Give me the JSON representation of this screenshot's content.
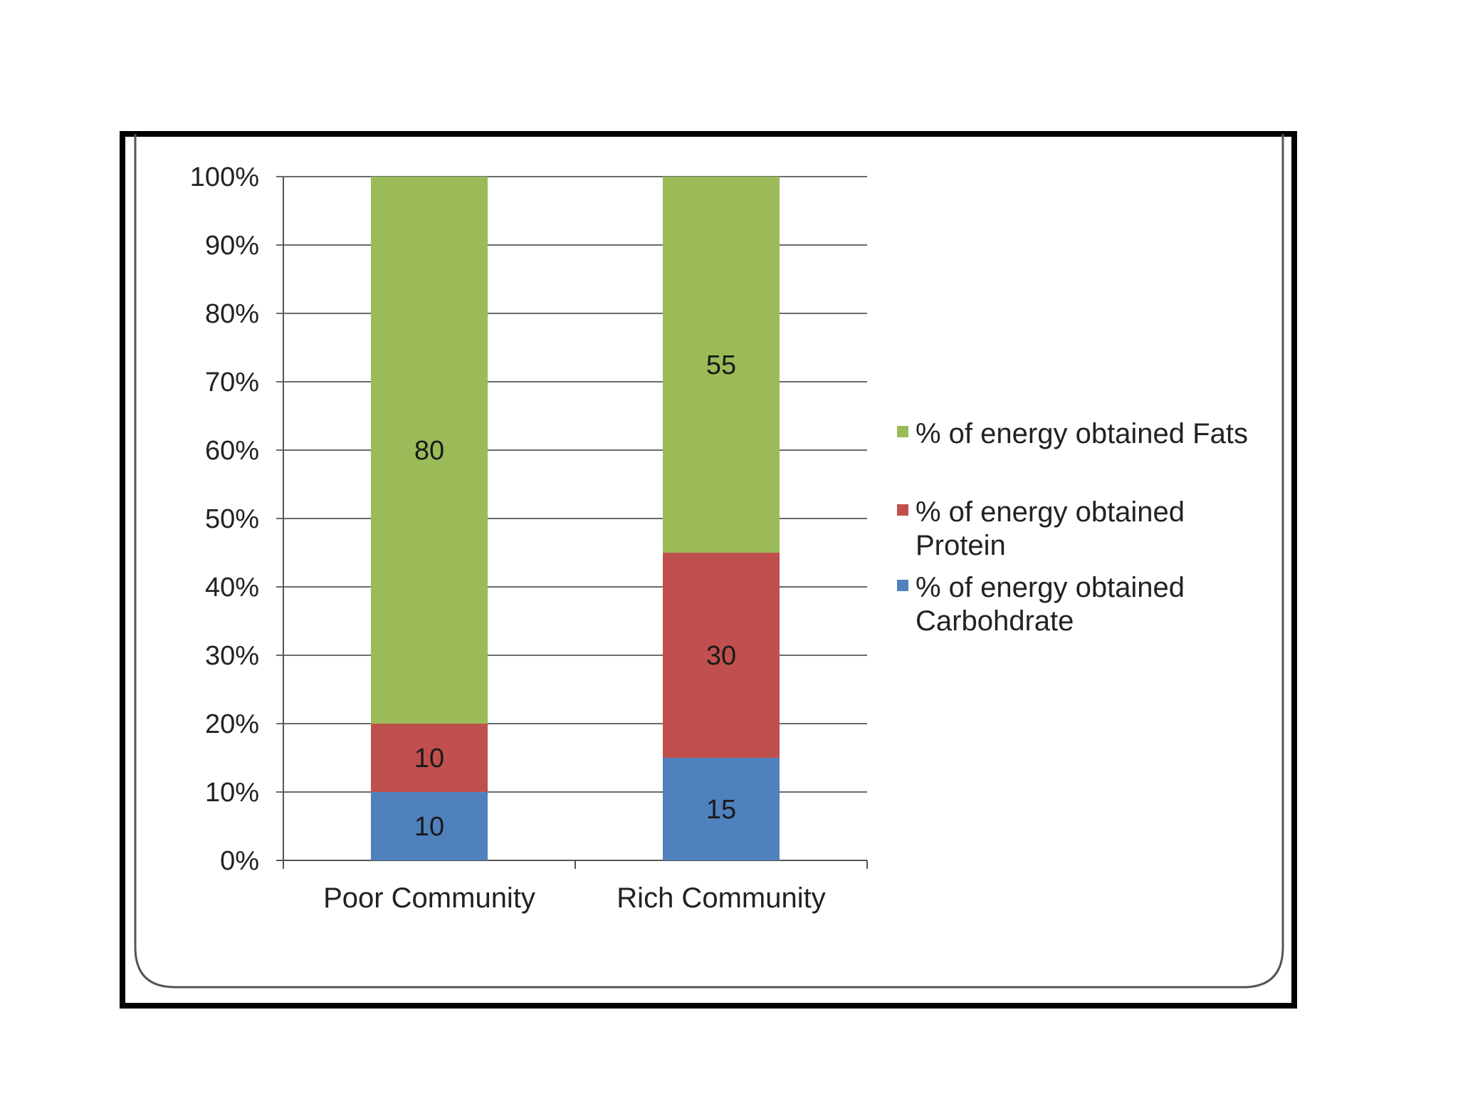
{
  "chart_data": {
    "type": "bar",
    "stacked": true,
    "percent_stacked": true,
    "categories": [
      "Poor Community",
      "Rich Community"
    ],
    "series": [
      {
        "name": "% of energy obtained Carbohdrate",
        "values": [
          10,
          15
        ],
        "color": "#4f81bd"
      },
      {
        "name": "% of energy obtained Protein",
        "values": [
          10,
          30
        ],
        "color": "#c0504d"
      },
      {
        "name": "% of energy obtained Fats",
        "values": [
          80,
          55
        ],
        "color": "#9bbb59"
      }
    ],
    "legend": {
      "placement": "right",
      "entries": [
        {
          "series": "Fats",
          "lines": [
            "% of energy obtained Fats"
          ],
          "color": "#9bbb59"
        },
        {
          "series": "Protein",
          "lines": [
            "% of energy obtained",
            "Protein"
          ],
          "color": "#c0504d"
        },
        {
          "series": "Carbohdrate",
          "lines": [
            "% of energy obtained",
            "Carbohdrate"
          ],
          "color": "#4f81bd"
        }
      ]
    },
    "yticks": [
      "0%",
      "10%",
      "20%",
      "30%",
      "40%",
      "50%",
      "60%",
      "70%",
      "80%",
      "90%",
      "100%"
    ],
    "ylim": [
      0,
      100
    ],
    "grid": true,
    "data_labels": true
  }
}
